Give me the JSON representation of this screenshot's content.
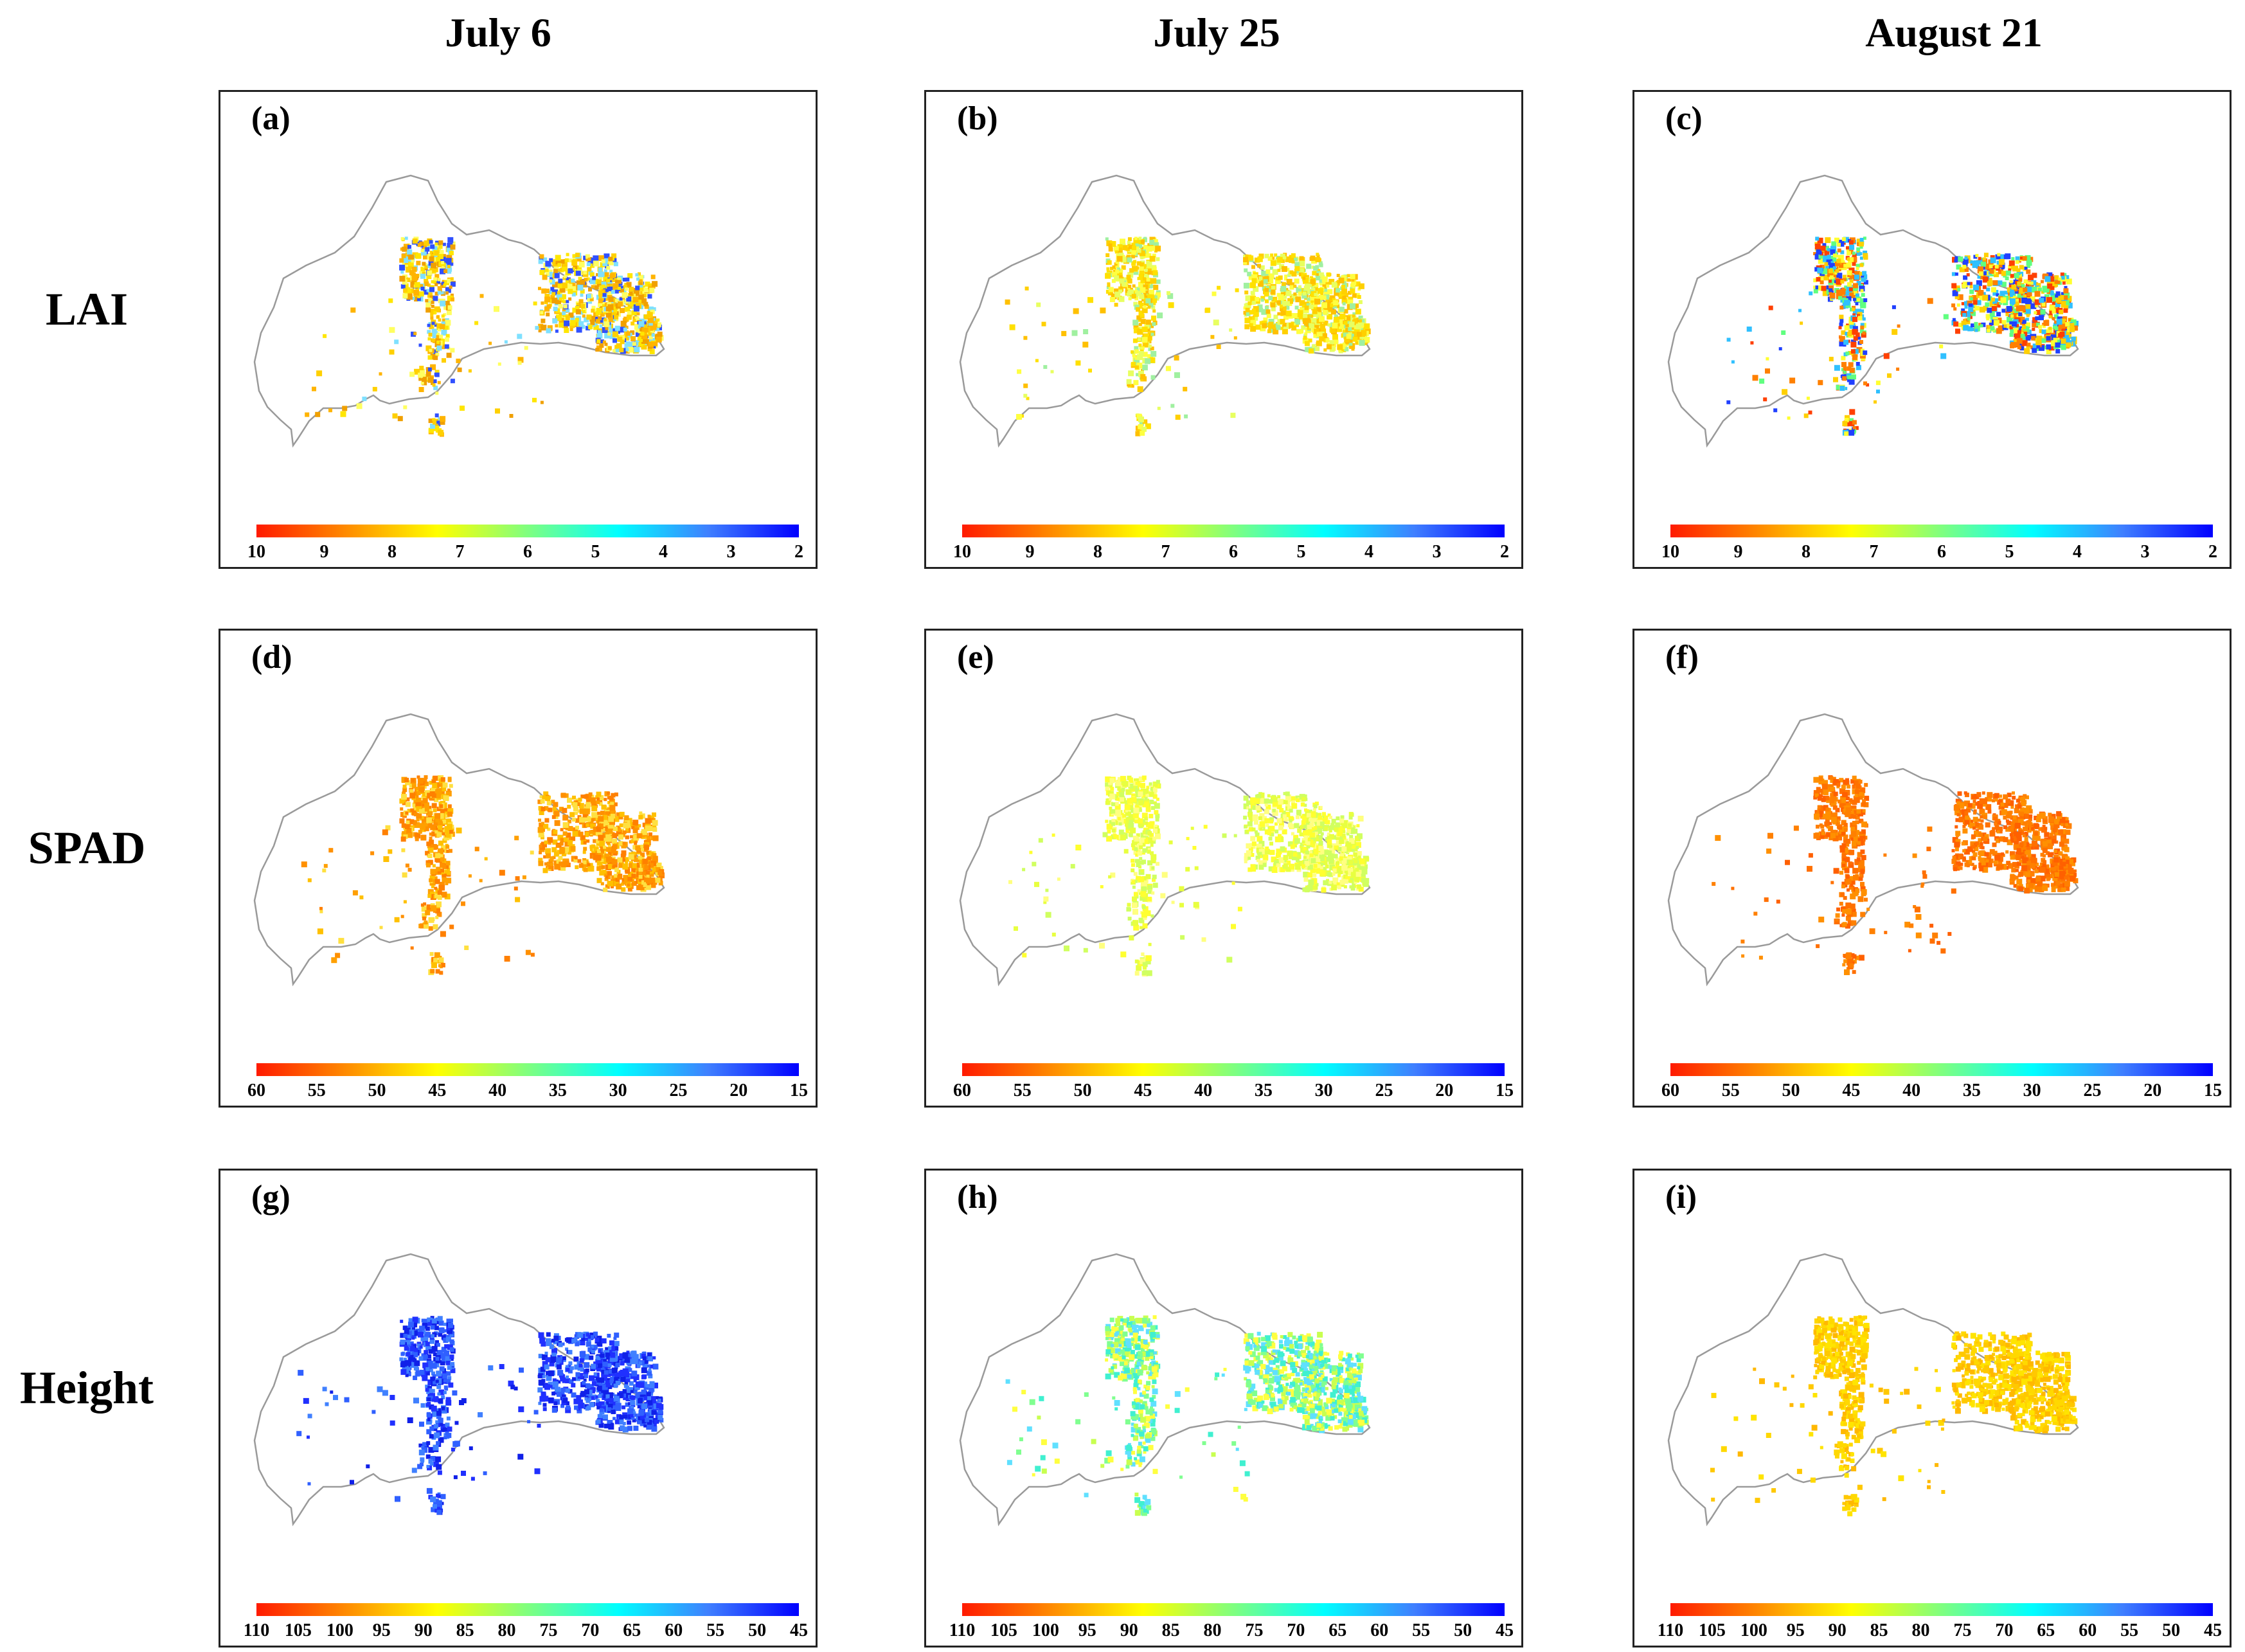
{
  "columns": [
    "July 6",
    "July 25",
    "August 21"
  ],
  "rows": [
    "LAI",
    "SPAD",
    "Height"
  ],
  "colorbars": {
    "LAI": {
      "ticks": [
        "10",
        "9",
        "8",
        "7",
        "6",
        "5",
        "4",
        "3",
        "2"
      ]
    },
    "SPAD": {
      "ticks": [
        "60",
        "55",
        "50",
        "45",
        "40",
        "35",
        "30",
        "25",
        "20",
        "15"
      ]
    },
    "Height": {
      "ticks": [
        "110",
        "105",
        "100",
        "95",
        "90",
        "85",
        "80",
        "75",
        "70",
        "65",
        "60",
        "55",
        "50",
        "45"
      ]
    }
  },
  "colorbar_gradient": [
    "#ff1a00",
    "#ff8c00",
    "#ffff00",
    "#7fff7f",
    "#00ffff",
    "#3f7fff",
    "#0000ff"
  ],
  "outline_color": "#9a9a9a",
  "panels": [
    {
      "label": "(a)",
      "row": "LAI",
      "date": "July 6",
      "colors": [
        "#ffd000",
        "#ffb400",
        "#ffe600",
        "#f0a000",
        "#ffff60",
        "#7fe0ff",
        "#3050ff"
      ]
    },
    {
      "label": "(b)",
      "row": "LAI",
      "date": "July 25",
      "colors": [
        "#ffe000",
        "#ffd000",
        "#ffc000",
        "#ffff40",
        "#e8ff60",
        "#a0f0a0"
      ]
    },
    {
      "label": "(c)",
      "row": "LAI",
      "date": "August 21",
      "colors": [
        "#ff4000",
        "#ff8000",
        "#ffd000",
        "#60ff80",
        "#30c0ff",
        "#2040ff",
        "#ffff30"
      ]
    },
    {
      "label": "(d)",
      "row": "SPAD",
      "date": "July 6",
      "colors": [
        "#ff9000",
        "#ff8000",
        "#ffa000",
        "#ffc000",
        "#ffe040"
      ]
    },
    {
      "label": "(e)",
      "row": "SPAD",
      "date": "July 25",
      "colors": [
        "#e8ff40",
        "#ffff30",
        "#d0ff60",
        "#ffff80"
      ]
    },
    {
      "label": "(f)",
      "row": "SPAD",
      "date": "August 21",
      "colors": [
        "#ff8000",
        "#ff7000",
        "#ff9000",
        "#ff6000"
      ]
    },
    {
      "label": "(g)",
      "row": "Height",
      "date": "July 6",
      "colors": [
        "#2030ff",
        "#1020e8",
        "#3060ff",
        "#4080ff"
      ]
    },
    {
      "label": "(h)",
      "row": "Height",
      "date": "July 25",
      "colors": [
        "#c8ff50",
        "#80ff90",
        "#40f0d0",
        "#ffff40",
        "#60e0ff"
      ]
    },
    {
      "label": "(i)",
      "row": "Height",
      "date": "August 21",
      "colors": [
        "#ffd800",
        "#ffc800",
        "#ffe400",
        "#ffb800"
      ]
    }
  ]
}
